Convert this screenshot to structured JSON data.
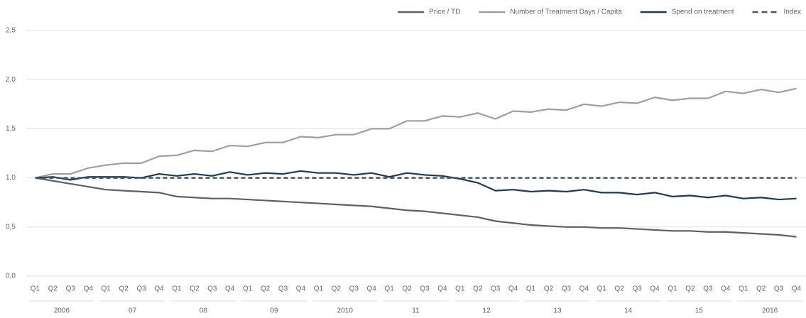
{
  "chart_data": {
    "type": "line",
    "categories": [
      "Q1",
      "Q2",
      "Q3",
      "Q4",
      "Q1",
      "Q2",
      "Q3",
      "Q4",
      "Q1",
      "Q2",
      "Q3",
      "Q4",
      "Q1",
      "Q2",
      "Q3",
      "Q4",
      "Q1",
      "Q2",
      "Q3",
      "Q4",
      "Q1",
      "Q2",
      "Q3",
      "Q4",
      "Q1",
      "Q2",
      "Q3",
      "Q4",
      "Q1",
      "Q2",
      "Q3",
      "Q4",
      "Q1",
      "Q2",
      "Q3",
      "Q4",
      "Q1",
      "Q2",
      "Q3",
      "Q4",
      "Q1",
      "Q2",
      "Q3",
      "Q4"
    ],
    "year_groups": [
      "2006",
      "07",
      "08",
      "09",
      "2010",
      "11",
      "12",
      "13",
      "14",
      "15",
      "2016"
    ],
    "series": [
      {
        "name": "Price / TD",
        "color": "#596169",
        "values": [
          1.0,
          0.97,
          0.94,
          0.91,
          0.88,
          0.87,
          0.86,
          0.85,
          0.81,
          0.8,
          0.79,
          0.79,
          0.78,
          0.77,
          0.76,
          0.75,
          0.74,
          0.73,
          0.72,
          0.71,
          0.69,
          0.67,
          0.66,
          0.64,
          0.62,
          0.6,
          0.56,
          0.54,
          0.52,
          0.51,
          0.5,
          0.5,
          0.49,
          0.49,
          0.48,
          0.47,
          0.46,
          0.46,
          0.45,
          0.45,
          0.44,
          0.43,
          0.42,
          0.4
        ]
      },
      {
        "name": "Number of Treatment Days / Capita",
        "color": "#9aa0a6",
        "values": [
          1.0,
          1.04,
          1.04,
          1.1,
          1.13,
          1.15,
          1.15,
          1.22,
          1.23,
          1.28,
          1.27,
          1.33,
          1.32,
          1.36,
          1.36,
          1.42,
          1.41,
          1.44,
          1.44,
          1.5,
          1.5,
          1.58,
          1.58,
          1.63,
          1.62,
          1.66,
          1.6,
          1.68,
          1.67,
          1.7,
          1.69,
          1.75,
          1.73,
          1.77,
          1.76,
          1.82,
          1.79,
          1.81,
          1.81,
          1.88,
          1.86,
          1.9,
          1.87,
          1.91
        ]
      },
      {
        "name": "Spend on treatment",
        "color": "#1f3a57",
        "values": [
          1.0,
          1.01,
          0.98,
          1.01,
          1.01,
          1.01,
          1.0,
          1.04,
          1.02,
          1.04,
          1.02,
          1.06,
          1.03,
          1.05,
          1.04,
          1.07,
          1.05,
          1.05,
          1.03,
          1.05,
          1.01,
          1.05,
          1.03,
          1.02,
          0.99,
          0.95,
          0.87,
          0.88,
          0.86,
          0.87,
          0.86,
          0.88,
          0.85,
          0.85,
          0.83,
          0.85,
          0.81,
          0.82,
          0.8,
          0.82,
          0.79,
          0.8,
          0.78,
          0.79
        ]
      },
      {
        "name": "Index",
        "color": "#4a5563",
        "dashed": true,
        "values": [
          1,
          1,
          1,
          1,
          1,
          1,
          1,
          1,
          1,
          1,
          1,
          1,
          1,
          1,
          1,
          1,
          1,
          1,
          1,
          1,
          1,
          1,
          1,
          1,
          1,
          1,
          1,
          1,
          1,
          1,
          1,
          1,
          1,
          1,
          1,
          1,
          1,
          1,
          1,
          1,
          1,
          1,
          1,
          1
        ]
      }
    ],
    "ylim": [
      0,
      2.5
    ],
    "yticks": [
      {
        "value": 0,
        "label": "0,0"
      },
      {
        "value": 0.5,
        "label": "0,5"
      },
      {
        "value": 1,
        "label": "1,0"
      },
      {
        "value": 1.5,
        "label": "1,5"
      },
      {
        "value": 2,
        "label": "2,0"
      },
      {
        "value": 2.5,
        "label": "2,5"
      }
    ],
    "grid": true,
    "legend": "top-right"
  }
}
